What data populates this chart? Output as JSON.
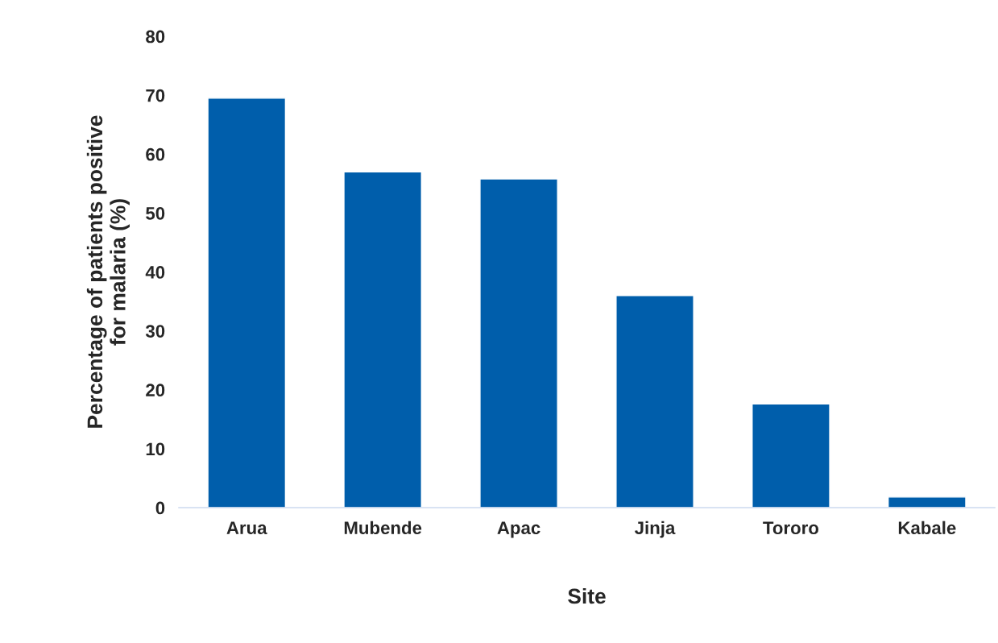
{
  "chart_data": {
    "type": "bar",
    "xlabel": "Site",
    "ylabel": "Percentage of patients positive\nfor malaria (%)",
    "categories": [
      "Arua",
      "Mubende",
      "Apac",
      "Jinja",
      "Tororo",
      "Kabale"
    ],
    "values": [
      69.5,
      57.0,
      55.8,
      36.0,
      17.6,
      1.8
    ],
    "color": "#005eab",
    "ylim": [
      0,
      80
    ],
    "yticks": [
      0,
      10,
      20,
      30,
      40,
      50,
      60,
      70,
      80
    ],
    "grid": false,
    "legend": false
  }
}
